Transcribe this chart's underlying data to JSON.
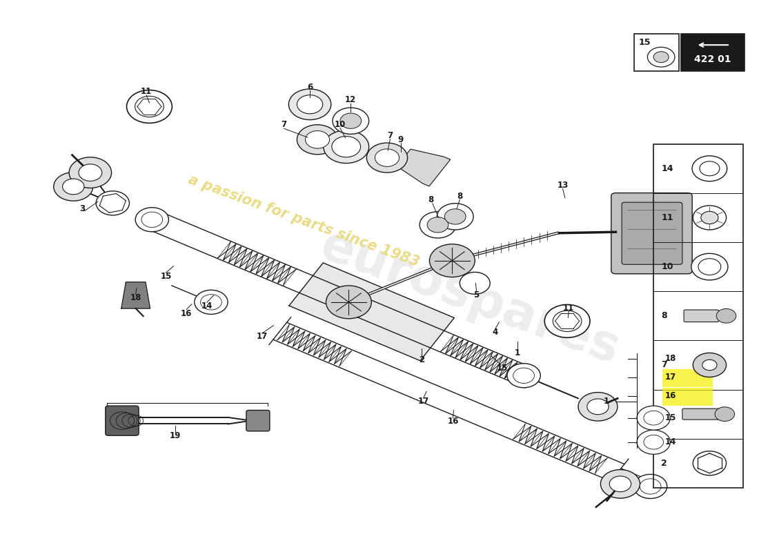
{
  "background_color": "#ffffff",
  "watermark_text": "a passion for parts since 1983",
  "watermark_color": "#e8d87a",
  "part_number": "422 01",
  "fig_width": 11.0,
  "fig_height": 8.0
}
